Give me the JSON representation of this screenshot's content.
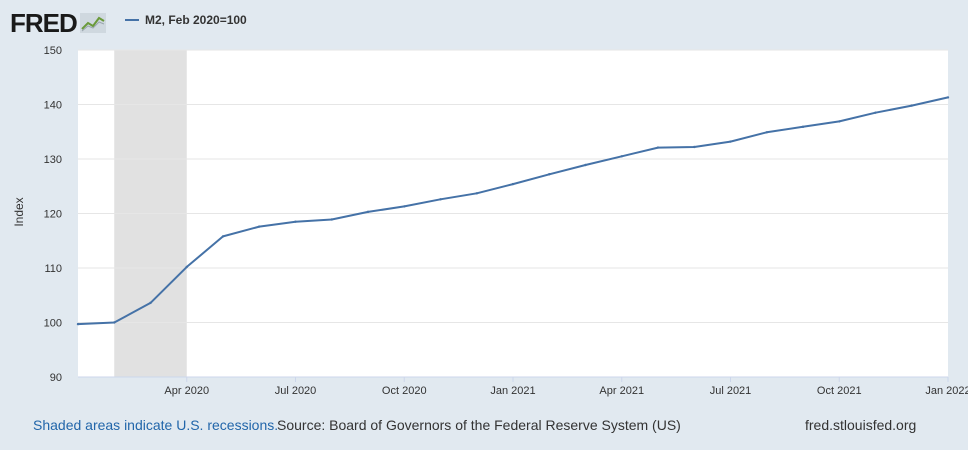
{
  "header": {
    "logo_text": "FRED",
    "legend_label": "M2, Feb 2020=100"
  },
  "colors": {
    "series": "#4572a7",
    "recession": "#e1e1e1",
    "background": "#e1e9f0",
    "plot_background": "#ffffff"
  },
  "footer": {
    "recession_note": "Shaded areas indicate U.S. recessions.",
    "source": "Source: Board of Governors of the Federal Reserve System (US)",
    "site": "fred.stlouisfed.org"
  },
  "chart_data": {
    "type": "line",
    "title": "",
    "xlabel": "",
    "ylabel": "Index",
    "ylim": [
      90,
      150
    ],
    "yticks": [
      90,
      100,
      110,
      120,
      130,
      140,
      150
    ],
    "xlim": [
      "2020-01",
      "2022-01"
    ],
    "xtick_labels": [
      "Apr 2020",
      "Jul 2020",
      "Oct 2020",
      "Jan 2021",
      "Apr 2021",
      "Jul 2021",
      "Oct 2021",
      "Jan 2022"
    ],
    "xtick_dates": [
      "2020-04",
      "2020-07",
      "2020-10",
      "2021-01",
      "2021-04",
      "2021-07",
      "2021-10",
      "2022-01"
    ],
    "grid": true,
    "recession_shading": [
      {
        "start": "2020-02",
        "end": "2020-04"
      }
    ],
    "series": [
      {
        "name": "M2, Feb 2020=100",
        "x": [
          "2020-01",
          "2020-02",
          "2020-03",
          "2020-04",
          "2020-05",
          "2020-06",
          "2020-07",
          "2020-08",
          "2020-09",
          "2020-10",
          "2020-11",
          "2020-12",
          "2021-01",
          "2021-02",
          "2021-03",
          "2021-04",
          "2021-05",
          "2021-06",
          "2021-07",
          "2021-08",
          "2021-09",
          "2021-10",
          "2021-11",
          "2021-12",
          "2022-01"
        ],
        "values": [
          99.7,
          100.0,
          103.6,
          110.2,
          115.8,
          117.6,
          118.5,
          118.9,
          120.3,
          121.3,
          122.6,
          123.7,
          125.4,
          127.2,
          128.9,
          130.5,
          132.1,
          132.2,
          133.2,
          134.9,
          135.9,
          136.9,
          138.5,
          139.8,
          141.3
        ]
      }
    ]
  }
}
